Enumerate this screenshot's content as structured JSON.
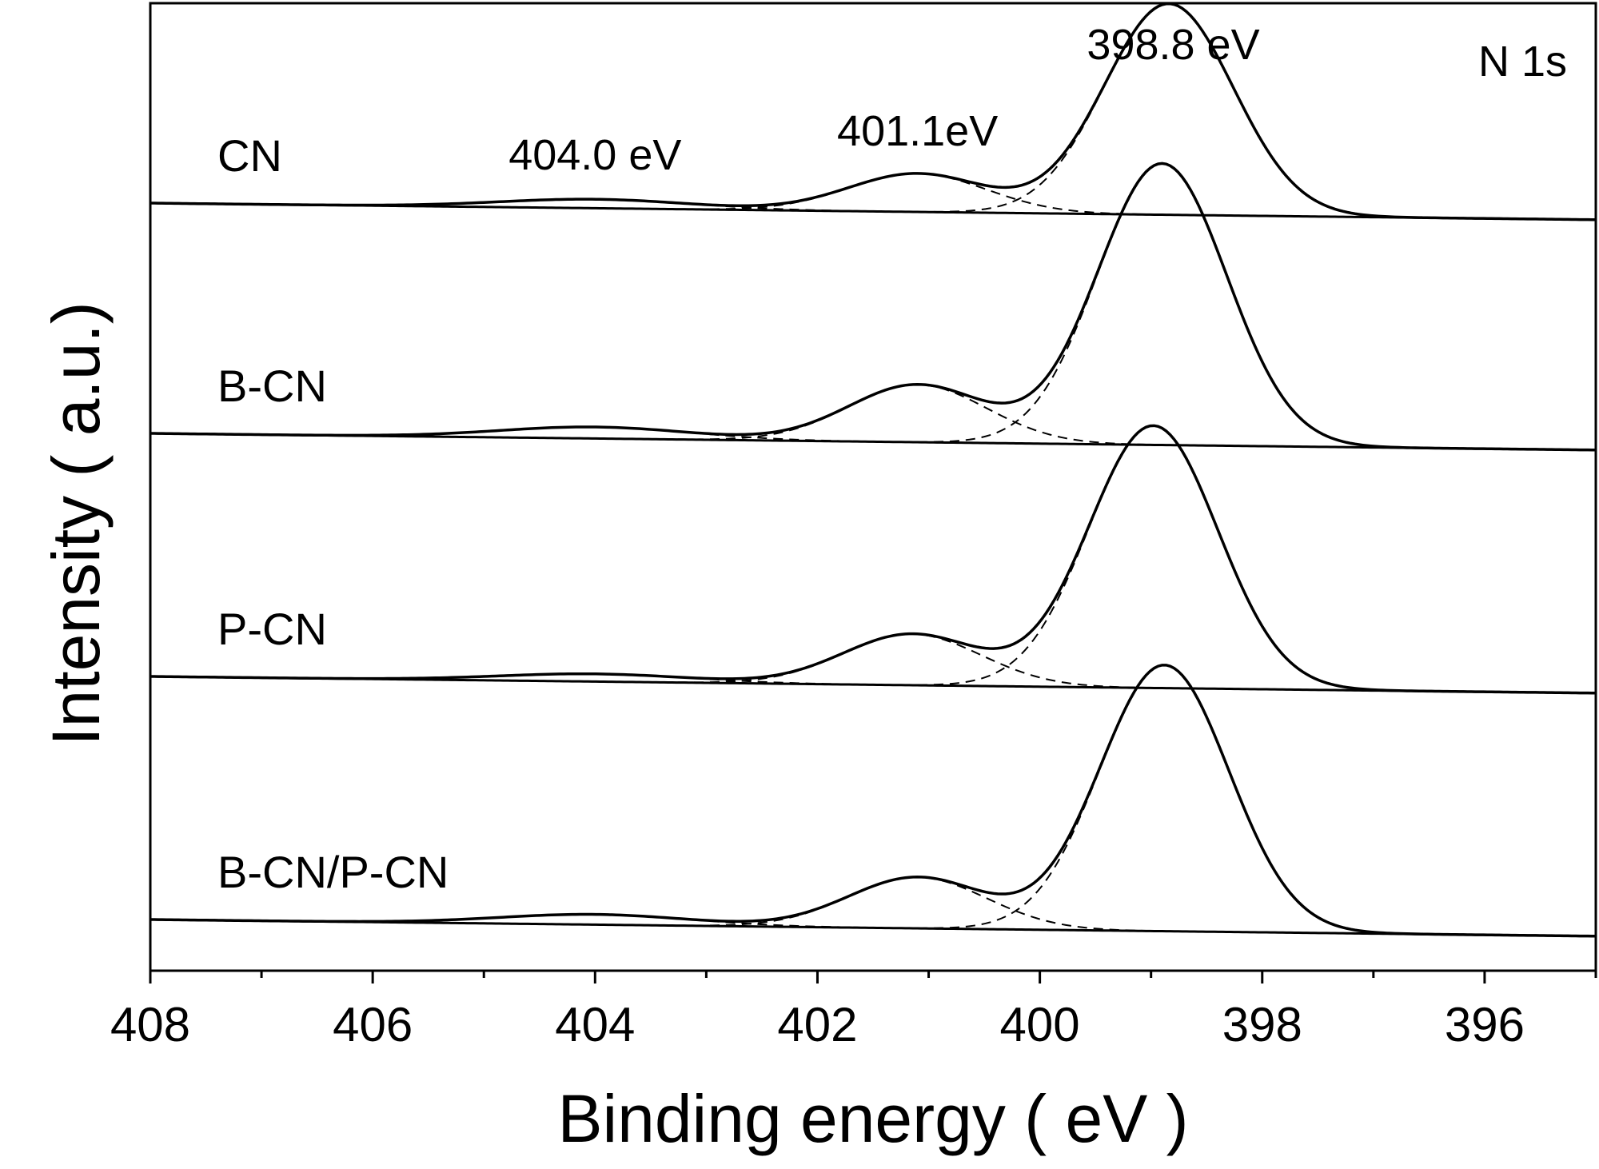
{
  "chart_data": {
    "type": "line",
    "title": "",
    "corner_label": "N 1s",
    "xlabel": "Binding energy ( eV )",
    "ylabel": "Intensity ( a.u.)",
    "xlim": [
      408,
      395
    ],
    "x_reversed": true,
    "x_ticks": [
      408,
      406,
      404,
      402,
      400,
      398,
      396
    ],
    "x_tick_labels": [
      "408",
      "406",
      "404",
      "402",
      "400",
      "398",
      "396"
    ],
    "x_minor_ticks": [
      407,
      405,
      403,
      401,
      399,
      397,
      395
    ],
    "y_ticks_shown": false,
    "grid": false,
    "legend": "none",
    "peak_labels": [
      {
        "text": "404.0 eV",
        "x": 404.0
      },
      {
        "text": "401.1eV",
        "x": 401.1
      },
      {
        "text": "398.8 eV",
        "x": 398.8
      }
    ],
    "series": [
      {
        "name": "CN",
        "baseline_start": 0.0,
        "baseline_end": -0.13,
        "components": [
          {
            "center": 398.84,
            "amp": 1.65,
            "sigma": 0.58
          },
          {
            "center": 401.1,
            "amp": 0.3,
            "sigma": 0.62
          },
          {
            "center": 404.0,
            "amp": 0.07,
            "sigma": 0.85
          }
        ]
      },
      {
        "name": "B-CN",
        "baseline_start": 0.0,
        "baseline_end": -0.13,
        "components": [
          {
            "center": 398.9,
            "amp": 2.2,
            "sigma": 0.58
          },
          {
            "center": 401.1,
            "amp": 0.45,
            "sigma": 0.62
          },
          {
            "center": 404.0,
            "amp": 0.09,
            "sigma": 0.85
          }
        ]
      },
      {
        "name": "P-CN",
        "baseline_start": 0.0,
        "baseline_end": -0.13,
        "components": [
          {
            "center": 398.98,
            "amp": 2.05,
            "sigma": 0.58
          },
          {
            "center": 401.15,
            "amp": 0.4,
            "sigma": 0.62
          },
          {
            "center": 404.0,
            "amp": 0.06,
            "sigma": 0.85
          }
        ]
      },
      {
        "name": "B-CN/P-CN",
        "baseline_start": 0.0,
        "baseline_end": -0.13,
        "components": [
          {
            "center": 398.88,
            "amp": 2.08,
            "sigma": 0.58
          },
          {
            "center": 401.1,
            "amp": 0.4,
            "sigma": 0.62
          },
          {
            "center": 404.0,
            "amp": 0.08,
            "sigma": 0.85
          }
        ]
      }
    ]
  }
}
